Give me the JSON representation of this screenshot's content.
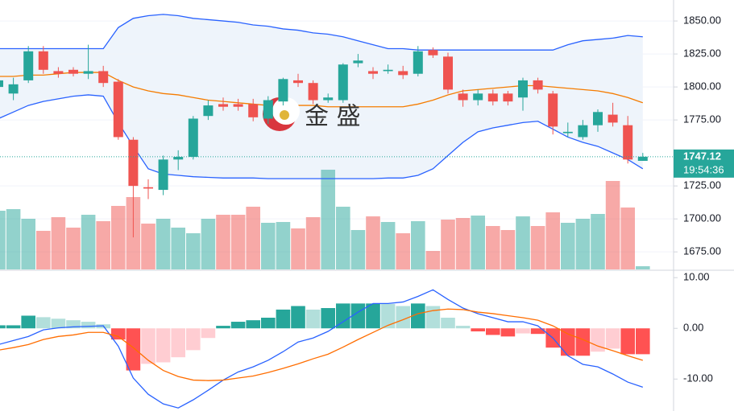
{
  "chart_data": [
    {
      "type": "candlestick",
      "open": [
        1800,
        1795,
        1805,
        1827,
        1812,
        1813,
        1810,
        1812,
        1804,
        1760,
        1724,
        1722,
        1745,
        1747,
        1778,
        1787,
        1787,
        1787,
        1776,
        1789,
        1805,
        1803,
        1790,
        1790,
        1818,
        1812,
        1812,
        1812,
        1810,
        1828,
        1823,
        1795,
        1790,
        1795,
        1795,
        1792,
        1805,
        1795,
        1765,
        1762,
        1771,
        1779,
        1771,
        1744
      ],
      "high": [
        1807,
        1807,
        1831,
        1831,
        1815,
        1815,
        1832,
        1816,
        1806,
        1762,
        1730,
        1748,
        1752,
        1778,
        1790,
        1792,
        1791,
        1791,
        1793,
        1807,
        1810,
        1805,
        1795,
        1818,
        1825,
        1815,
        1817,
        1816,
        1831,
        1830,
        1826,
        1798,
        1798,
        1798,
        1797,
        1807,
        1807,
        1797,
        1773,
        1775,
        1783,
        1788,
        1778,
        1750
      ],
      "low": [
        1797,
        1790,
        1803,
        1810,
        1807,
        1808,
        1806,
        1800,
        1760,
        1686,
        1715,
        1718,
        1737,
        1745,
        1775,
        1782,
        1782,
        1774,
        1772,
        1786,
        1800,
        1787,
        1788,
        1788,
        1815,
        1806,
        1810,
        1806,
        1808,
        1822,
        1795,
        1785,
        1786,
        1786,
        1786,
        1782,
        1795,
        1764,
        1762,
        1760,
        1766,
        1770,
        1742,
        1744
      ],
      "close": [
        1805,
        1802,
        1827,
        1813,
        1810,
        1810,
        1812,
        1803,
        1762,
        1725,
        1723,
        1745,
        1747,
        1776,
        1786,
        1785,
        1785,
        1777,
        1790,
        1806,
        1803,
        1790,
        1792,
        1817,
        1820,
        1810,
        1813,
        1809,
        1827,
        1824,
        1798,
        1790,
        1795,
        1789,
        1789,
        1805,
        1798,
        1770,
        1766,
        1771,
        1781,
        1773,
        1745,
        1747.12
      ],
      "volume": [
        73,
        75,
        63,
        48,
        65,
        52,
        68,
        60,
        79,
        90,
        57,
        63,
        52,
        45,
        63,
        68,
        68,
        78,
        58,
        59,
        51,
        65,
        124,
        78,
        49,
        66,
        59,
        45,
        60,
        23,
        62,
        64,
        67,
        54,
        49,
        66,
        54,
        71,
        58,
        63,
        69,
        110,
        77,
        4
      ],
      "volume_ylim": [
        0,
        130
      ],
      "bands": {
        "upper": [
          1829,
          1829,
          1829,
          1829,
          1829,
          1829,
          1829,
          1829,
          1845,
          1852,
          1854,
          1855,
          1854,
          1852,
          1851,
          1850,
          1849,
          1847,
          1846,
          1844,
          1843,
          1841,
          1840,
          1838,
          1835,
          1832,
          1829,
          1829,
          1828,
          1828,
          1828,
          1828,
          1828,
          1828,
          1828,
          1828,
          1828,
          1828,
          1832,
          1835,
          1836,
          1837,
          1839,
          1838
        ],
        "middle": [
          1808,
          1808,
          1809,
          1809,
          1810,
          1811,
          1811,
          1811,
          1805,
          1800,
          1797,
          1795,
          1794,
          1792,
          1790,
          1789,
          1788,
          1787,
          1786,
          1786,
          1786,
          1786,
          1785,
          1785,
          1785,
          1785,
          1785,
          1785,
          1787,
          1790,
          1794,
          1797,
          1798,
          1799,
          1800,
          1801,
          1801,
          1800,
          1799,
          1798,
          1797,
          1795,
          1792,
          1788
        ],
        "lower": [
          1776,
          1781,
          1786,
          1789,
          1791,
          1793,
          1794,
          1793,
          1773,
          1755,
          1738,
          1734,
          1733,
          1732,
          1731.5,
          1731,
          1731,
          1731,
          1730.5,
          1730.5,
          1730.5,
          1730.5,
          1730.5,
          1730.5,
          1730.5,
          1730.5,
          1731,
          1731,
          1733,
          1738,
          1748,
          1758,
          1766,
          1769,
          1771,
          1773,
          1774,
          1768,
          1762,
          1758,
          1755,
          1750,
          1745,
          1738
        ]
      },
      "band_color": "#2962ff",
      "middle_color": "#f57c00",
      "band_fill": "#eef4fb",
      "up_color": "#26a69a",
      "down_color": "#ef5350",
      "ylim": [
        1661.7,
        1865.9
      ],
      "yticks": [
        {
          "value": 1675,
          "label": "1675.00"
        },
        {
          "value": 1700,
          "label": "1700.00"
        },
        {
          "value": 1725,
          "label": "1725.00"
        },
        {
          "value": 1775,
          "label": "1775.00"
        },
        {
          "value": 1800,
          "label": "1800.00"
        },
        {
          "value": 1825,
          "label": "1825.00"
        },
        {
          "value": 1850,
          "label": "1850.00"
        }
      ],
      "grid": true,
      "last_price": 1747.12,
      "last_time": "19:54:36",
      "watermark": "金 盛"
    },
    {
      "type": "macd",
      "histogram": [
        0.6,
        0.6,
        2.5,
        2.2,
        1.9,
        1.6,
        1.3,
        0.8,
        -2.2,
        -8.3,
        -7.0,
        -6.7,
        -5.7,
        -4.3,
        -1.9,
        0.5,
        1.3,
        1.6,
        2.1,
        3.7,
        4.4,
        3.7,
        4.0,
        4.9,
        4.9,
        4.9,
        4.8,
        4.4,
        4.9,
        4.4,
        2.1,
        0.5,
        -0.6,
        -1.3,
        -1.6,
        -1.0,
        -1.1,
        -3.8,
        -5.4,
        -5.4,
        -4.6,
        -4.0,
        -5.1,
        -5.1
      ],
      "macd_line": {
        "color": "#2962ff",
        "values": [
          -3.2,
          -2.4,
          -1.6,
          -0.3,
          0.1,
          0.3,
          0.4,
          0.5,
          -3.5,
          -9.8,
          -13,
          -14.9,
          -15.7,
          -14.1,
          -12.2,
          -10.2,
          -8.6,
          -7.6,
          -6.3,
          -4.6,
          -2.7,
          -1.9,
          -0.6,
          1.3,
          3.2,
          4.9,
          4.9,
          5.2,
          6.3,
          7.6,
          5.7,
          4.0,
          2.9,
          2.1,
          1.3,
          1.3,
          0.5,
          -1.9,
          -5.4,
          -7.1,
          -7.6,
          -9.0,
          -10.6,
          -11.6
        ]
      },
      "signal_line": {
        "color": "#ff6d00",
        "values": [
          -4.3,
          -3.8,
          -3.2,
          -2.2,
          -1.6,
          -1.3,
          -0.8,
          -0.8,
          -1.6,
          -3.8,
          -6.3,
          -8.3,
          -9.5,
          -10.2,
          -10.3,
          -10.2,
          -9.8,
          -9.4,
          -8.7,
          -7.9,
          -7.0,
          -6.0,
          -5.1,
          -3.7,
          -2.2,
          -0.8,
          0.6,
          1.7,
          2.9,
          3.5,
          3.8,
          3.7,
          3.2,
          2.9,
          2.5,
          2.1,
          1.6,
          0.5,
          -1.1,
          -2.2,
          -3.5,
          -4.4,
          -5.4,
          -6.3
        ]
      },
      "hist_colors": [
        "#26a69a",
        "#b2dfdb",
        "#ff5252",
        "#ffcdd2"
      ],
      "ylim": [
        -16.3,
        11.3
      ],
      "yticks": [
        {
          "value": 10,
          "label": "10.00"
        },
        {
          "value": 0,
          "label": "0.00"
        },
        {
          "value": -10,
          "label": "-10.00"
        }
      ]
    }
  ]
}
